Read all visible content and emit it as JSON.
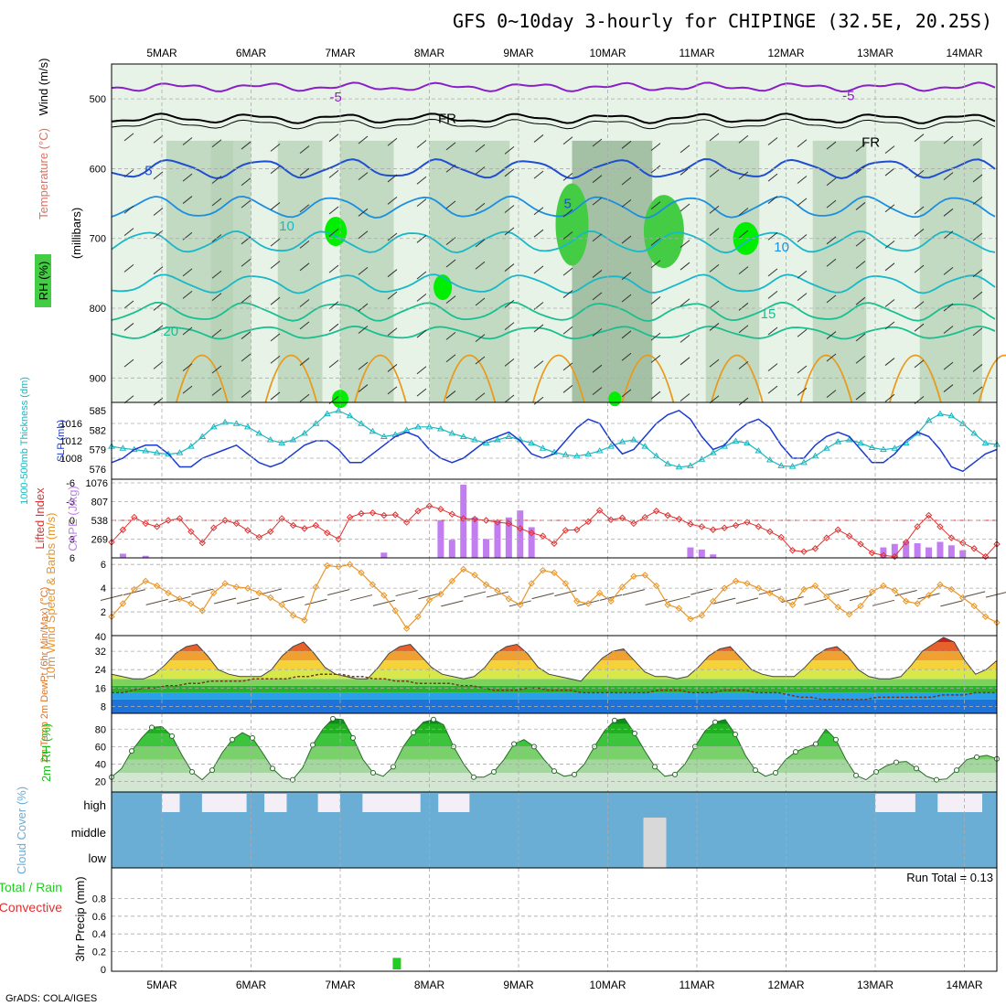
{
  "title": "GFS 0~10day 3-hourly for CHIPINGE (32.5E, 20.25S)",
  "footer": "GrADS: COLA/IGES",
  "dates": [
    "5MAR",
    "6MAR",
    "7MAR",
    "8MAR",
    "9MAR",
    "10MAR",
    "11MAR",
    "12MAR",
    "13MAR",
    "14MAR"
  ],
  "colors": {
    "rh_light": "#e8f3e8",
    "rh_mid": "#b6d0b6",
    "rh_dark": "#8fb08f",
    "rh_green": "#44cc44",
    "rh_bright": "#00ee00",
    "temp_purple": "#8a1fc8",
    "temp_blue": "#1f4fd0",
    "temp_lightblue": "#1a8fe0",
    "temp_cyan": "#17b8c8",
    "temp_teal": "#19bf90",
    "temp_orange": "#e89a1c",
    "temp_magenta": "#d8127a",
    "slp": "#1a3ad0",
    "thickness": "#19b8c0",
    "lifted": "#e03030",
    "cape": "#c27ef0",
    "wind": "#e8962a",
    "barb": "#5a4a3a",
    "rh2m": "#22bb22",
    "cloud": "#6aaed6",
    "cloud_clear": "#f4eef6",
    "precip": "#22cc22"
  },
  "chart_data": [
    {
      "type": "heatmap",
      "name": "upper-air",
      "ylabel": "(millibars)",
      "legend_labels": [
        "RH (%)",
        "Temperature (°C)",
        "Wind (m/s)"
      ],
      "yticks": [
        500,
        600,
        700,
        800,
        900
      ],
      "ylim": [
        450,
        935
      ],
      "contour_labels": [
        {
          "text": "-5",
          "day": 1.95,
          "p": 497,
          "color": "temp_purple"
        },
        {
          "text": "-5",
          "day": 7.7,
          "p": 495,
          "color": "temp_purple"
        },
        {
          "text": "FR",
          "day": 3.2,
          "p": 528,
          "color": "black"
        },
        {
          "text": "FR",
          "day": 7.95,
          "p": 562,
          "color": "black"
        },
        {
          "text": "5",
          "day": -0.15,
          "p": 603,
          "color": "temp_blue"
        },
        {
          "text": "5",
          "day": 4.55,
          "p": 650,
          "color": "temp_blue"
        },
        {
          "text": "10",
          "day": 1.4,
          "p": 682,
          "color": "temp_cyan"
        },
        {
          "text": "10",
          "day": 6.95,
          "p": 712,
          "color": "temp_lightblue"
        },
        {
          "text": "15",
          "day": 6.8,
          "p": 808,
          "color": "temp_teal"
        },
        {
          "text": "20",
          "day": 0.1,
          "p": 833,
          "color": "temp_teal"
        }
      ]
    },
    {
      "type": "line",
      "name": "slp-thickness",
      "series": [
        {
          "name": "SLP (mb)",
          "axis": "right",
          "values": [
            1007,
            1008,
            1010,
            1011,
            1011,
            1009,
            1006,
            1006,
            1008,
            1009,
            1010,
            1011,
            1009,
            1007,
            1006,
            1007,
            1009,
            1011,
            1012,
            1012,
            1010,
            1007,
            1007,
            1009,
            1011,
            1013,
            1014,
            1013,
            1010,
            1008,
            1007,
            1008,
            1010,
            1012,
            1013,
            1014,
            1012,
            1009,
            1008,
            1009,
            1012,
            1015,
            1017,
            1016,
            1012,
            1009,
            1010,
            1013,
            1016,
            1018,
            1019,
            1017,
            1013,
            1010,
            1011,
            1014,
            1016,
            1017,
            1015,
            1011,
            1008,
            1008,
            1011,
            1013,
            1014,
            1013,
            1010,
            1007,
            1007,
            1009,
            1012,
            1014,
            1013,
            1010,
            1006,
            1005,
            1007,
            1009,
            1010
          ]
        },
        {
          "name": "1000-500mb Thickness (dm)",
          "axis": "left",
          "values": [
            579.5,
            579.2,
            579,
            578.8,
            578.5,
            578.3,
            578.5,
            579.5,
            581,
            582.5,
            583.2,
            583,
            582.5,
            581.5,
            580.5,
            580,
            580.5,
            581.5,
            583,
            584.5,
            585,
            584.2,
            583,
            581.8,
            581,
            581.3,
            582,
            582.5,
            582.5,
            582.2,
            581.5,
            581,
            580.5,
            580,
            580.5,
            581,
            580.5,
            580,
            579.2,
            578.6,
            578.2,
            578,
            578.3,
            578.8,
            579.5,
            580.2,
            580.5,
            579.5,
            578,
            576.8,
            576.3,
            576.5,
            577.5,
            578.5,
            579.5,
            580.3,
            580,
            578.8,
            577.4,
            576.5,
            576.4,
            577,
            578,
            579.2,
            580.2,
            580.5,
            580,
            579.3,
            579,
            579.2,
            580,
            581.5,
            583.5,
            584.5,
            584.2,
            583,
            581.5,
            580,
            579.8
          ]
        }
      ],
      "yticks_left": [
        576,
        579,
        582,
        585
      ],
      "yticks_right": [
        1008,
        1012,
        1016
      ],
      "ylabel_left": "1000-500mb Thickness (dm)",
      "ylabel_right": "SLP (mb)"
    },
    {
      "type": "bar",
      "name": "cape-lifted",
      "yticks_left": [
        "6",
        "3",
        "0",
        "-3",
        "-6"
      ],
      "yticks_right": [
        "269",
        "538",
        "807",
        "1076"
      ],
      "ylabel_left": "Lifted Index",
      "ylabel_right": "CAPE (J/kg)",
      "lifted_index": [
        3.5,
        1.5,
        -0.5,
        0.5,
        1,
        0,
        -0.3,
        1.8,
        3.6,
        1.2,
        0,
        0.5,
        1.6,
        2.7,
        1.8,
        -0.3,
        0.8,
        1.3,
        0.8,
        2,
        3,
        -0.5,
        -1.1,
        -1.2,
        -0.8,
        -0.9,
        0.3,
        -1.5,
        -2.3,
        -1.8,
        -1,
        -0.3,
        -0.2,
        0,
        0.3,
        0.5,
        1.3,
        2,
        2.5,
        3.7,
        1.6,
        1.5,
        0.2,
        -1.6,
        -0.1,
        -0.4,
        0.5,
        -0.5,
        -1.5,
        -0.8,
        -0.2,
        0.6,
        1,
        1.5,
        1.2,
        0.8,
        0.3,
        1,
        1.8,
        2.7,
        4.8,
        5,
        4.5,
        2.8,
        1.5,
        2.5,
        3.8,
        5.2,
        5.6,
        5.8,
        3.5,
        1,
        -0.8,
        1,
        2.8,
        3.6,
        4.5,
        5.8,
        3.8
      ],
      "cape": [
        0,
        60,
        0,
        30,
        0,
        0,
        0,
        0,
        0,
        0,
        0,
        0,
        0,
        0,
        0,
        0,
        0,
        0,
        0,
        0,
        0,
        0,
        0,
        0,
        75,
        0,
        0,
        0,
        0,
        540,
        260,
        1050,
        580,
        270,
        540,
        580,
        680,
        440,
        0,
        0,
        0,
        0,
        0,
        0,
        0,
        0,
        0,
        0,
        0,
        0,
        0,
        150,
        120,
        50,
        0,
        0,
        0,
        0,
        0,
        0,
        0,
        0,
        0,
        0,
        0,
        0,
        0,
        0,
        150,
        200,
        240,
        210,
        150,
        230,
        180,
        110,
        0,
        0,
        0
      ]
    },
    {
      "type": "line",
      "name": "10m-wind",
      "ylabel": "10m Wind Speed & Barbs (m/s)",
      "yticks": [
        2,
        4,
        6
      ],
      "ytick_bottom": "40",
      "values": [
        1.6,
        2.7,
        3.9,
        4.6,
        4.2,
        3.6,
        3.1,
        2.7,
        2.1,
        3.6,
        4.4,
        4.1,
        4,
        3.6,
        3.2,
        2.6,
        1.7,
        1.3,
        4.1,
        5.9,
        5.8,
        6,
        5.3,
        4.3,
        3.4,
        2.1,
        0.6,
        1.6,
        3,
        3.5,
        4.6,
        5.6,
        5.1,
        4.3,
        3.8,
        3.1,
        2.6,
        4.4,
        5.5,
        5.3,
        4.4,
        2.9,
        2.7,
        3.6,
        2.9,
        4.1,
        5,
        5.1,
        4.2,
        2.6,
        2.3,
        1.4,
        1.7,
        2.9,
        4,
        4.6,
        4.4,
        4,
        3.6,
        3.1,
        2.6,
        3.9,
        4.2,
        3.3,
        2.4,
        1.8,
        2.5,
        3.7,
        4.2,
        3.8,
        2.9,
        2.7,
        3.4,
        4.3,
        3.9,
        3.2,
        2.5,
        1.6,
        1.1
      ]
    },
    {
      "type": "area",
      "name": "2m-temp",
      "ylabel": "2m Temp 2m DewPt (6hr Min/Max) (°C)",
      "yticks": [
        8,
        16,
        24,
        32
      ],
      "temp": [
        22,
        21,
        20,
        20,
        22,
        26,
        31,
        34,
        35,
        30,
        24,
        22,
        21,
        21,
        21,
        24,
        30,
        34,
        36,
        31,
        25,
        22,
        21,
        20,
        20,
        25,
        31,
        34,
        35,
        30,
        25,
        22,
        21,
        20,
        21,
        25,
        31,
        34,
        35,
        31,
        25,
        22,
        21,
        20,
        19,
        24,
        29,
        32,
        33,
        28,
        23,
        21,
        21,
        20,
        21,
        25,
        30,
        33,
        34,
        29,
        24,
        22,
        21,
        21,
        21,
        25,
        30,
        33,
        34,
        30,
        24,
        21,
        20,
        20,
        21,
        26,
        32,
        35,
        38,
        36,
        28,
        22,
        24,
        28
      ],
      "dewpt": [
        14,
        14,
        15,
        16,
        16,
        17,
        17,
        18,
        18,
        19,
        19,
        19,
        19,
        20,
        20,
        20,
        20,
        21,
        21,
        22,
        22,
        22,
        21,
        21,
        20,
        20,
        19,
        19,
        18,
        18,
        18,
        18,
        17,
        17,
        16,
        15,
        15,
        15,
        16,
        16,
        15,
        15,
        15,
        14,
        14,
        14,
        14,
        14,
        14,
        14,
        15,
        15,
        15,
        14,
        14,
        14,
        15,
        15,
        15,
        14,
        14,
        14,
        13,
        12,
        12,
        11,
        11,
        11,
        11,
        11,
        12,
        12,
        12,
        12,
        12,
        12,
        13,
        13,
        13,
        14,
        14,
        14
      ]
    },
    {
      "type": "area",
      "name": "2m-rh",
      "ylabel": "2m RH (%)",
      "yticks": [
        20,
        40,
        60,
        80
      ],
      "values": [
        25,
        35,
        55,
        70,
        82,
        83,
        72,
        50,
        31,
        22,
        33,
        53,
        68,
        76,
        70,
        53,
        35,
        24,
        22,
        36,
        62,
        80,
        92,
        91,
        70,
        45,
        30,
        26,
        37,
        60,
        76,
        88,
        91,
        85,
        60,
        40,
        25,
        25,
        31,
        45,
        63,
        68,
        60,
        45,
        32,
        26,
        28,
        40,
        60,
        78,
        90,
        92,
        75,
        55,
        37,
        26,
        28,
        40,
        60,
        78,
        88,
        91,
        74,
        50,
        33,
        26,
        30,
        45,
        54,
        59,
        63,
        80,
        68,
        45,
        27,
        22,
        31,
        38,
        42,
        43,
        35,
        26,
        22,
        23,
        33,
        45,
        48,
        50,
        46
      ]
    },
    {
      "type": "heatmap",
      "name": "cloud-cover",
      "ylabel": "Cloud Cover (%)",
      "yticks": [
        "high",
        "middle",
        "low"
      ]
    },
    {
      "type": "bar",
      "name": "precip",
      "ylabel": "3hr Precip (mm)",
      "legend": [
        "Total / Rain",
        "Convective"
      ],
      "yticks": [
        0,
        0.2,
        0.4,
        0.6,
        0.8
      ],
      "ylim": [
        0,
        1
      ],
      "run_total": "Run Total = 0.13",
      "bars": [
        {
          "day": 2.63,
          "value": 0.13
        }
      ]
    }
  ]
}
